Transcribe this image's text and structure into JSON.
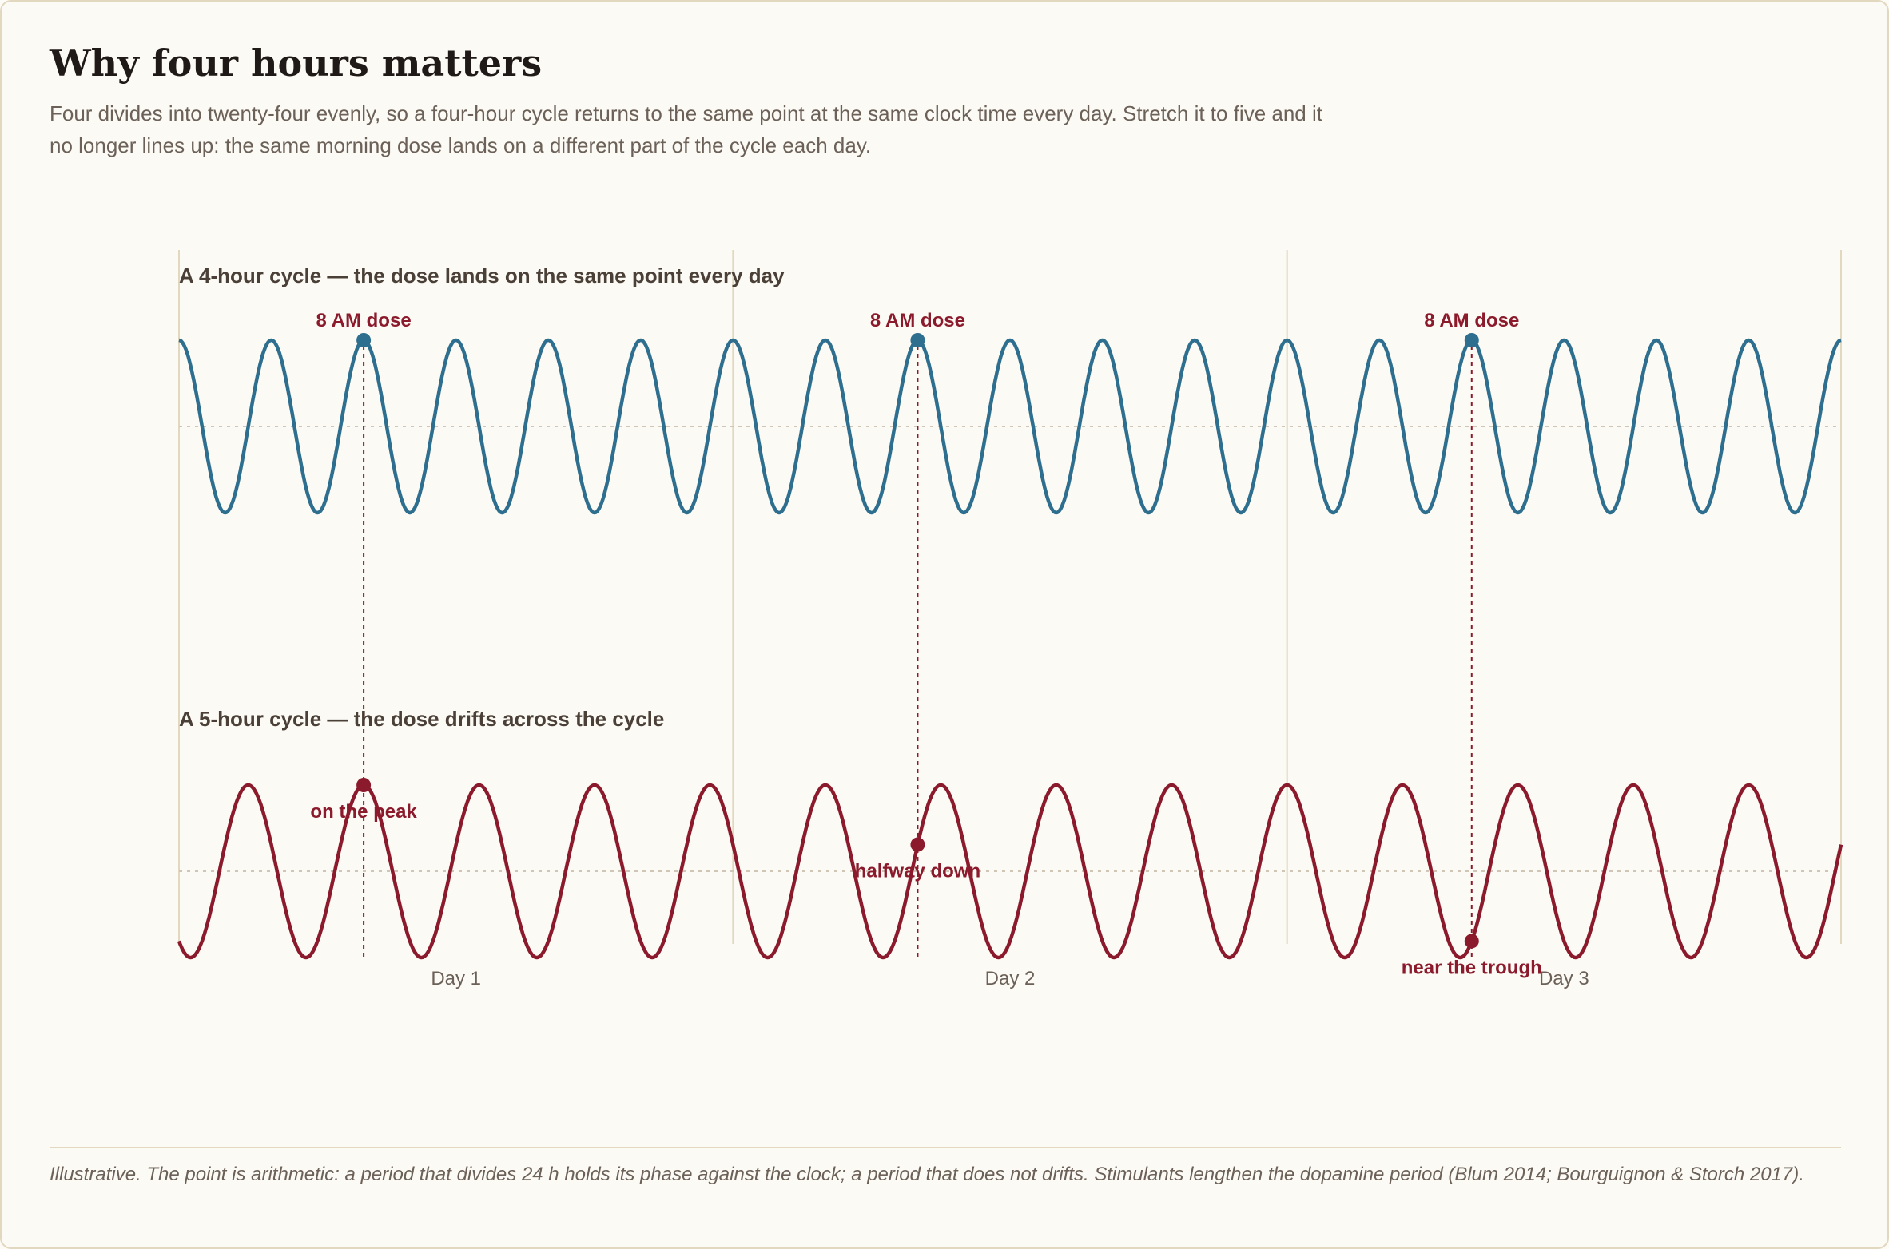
{
  "title": "Why four hours matters",
  "subtitle": "Four divides into twenty-four evenly, so a four-hour cycle returns to the same point at the same clock time every day. Stretch it to five and it no longer lines up: the same morning dose lands on a different part of the cycle each day.",
  "footnote": "Illustrative. The point is arithmetic: a period that divides 24 h holds its phase against the clock; a period that does not drifts. Stimulants lengthen the dopamine period (Blum 2014; Bourguignon & Storch 2017).",
  "colors": {
    "four_hour": "#2e6e8e",
    "five_hour": "#8b1a2c",
    "grid": "#e2d7bf",
    "dose_line": "#8b1a2c"
  },
  "chart_data": [
    {
      "type": "line",
      "title": "A 4-hour cycle — the dose lands on the same point every day",
      "period_hours": 4,
      "x_range_hours": [
        0,
        72
      ],
      "y_range": [
        -1,
        1
      ],
      "curve": "cosine",
      "day_labels": [
        "Day 1",
        "Day 2",
        "Day 3"
      ],
      "doses": [
        {
          "hour": 8,
          "label": "8 AM dose",
          "value": 1
        },
        {
          "hour": 32,
          "label": "8 AM dose",
          "value": 1
        },
        {
          "hour": 56,
          "label": "8 AM dose",
          "value": 1
        }
      ]
    },
    {
      "type": "line",
      "title": "A 5-hour cycle — the dose drifts across the cycle",
      "period_hours": 5,
      "x_range_hours": [
        0,
        72
      ],
      "y_range": [
        -1,
        1
      ],
      "curve": "cosine",
      "phase_hours": 8,
      "doses": [
        {
          "hour": 8,
          "label": "on the peak",
          "value": 1
        },
        {
          "hour": 32,
          "label": "halfway down",
          "value": 0.31
        },
        {
          "hour": 56,
          "label": "near the trough",
          "value": -0.81
        }
      ]
    }
  ]
}
